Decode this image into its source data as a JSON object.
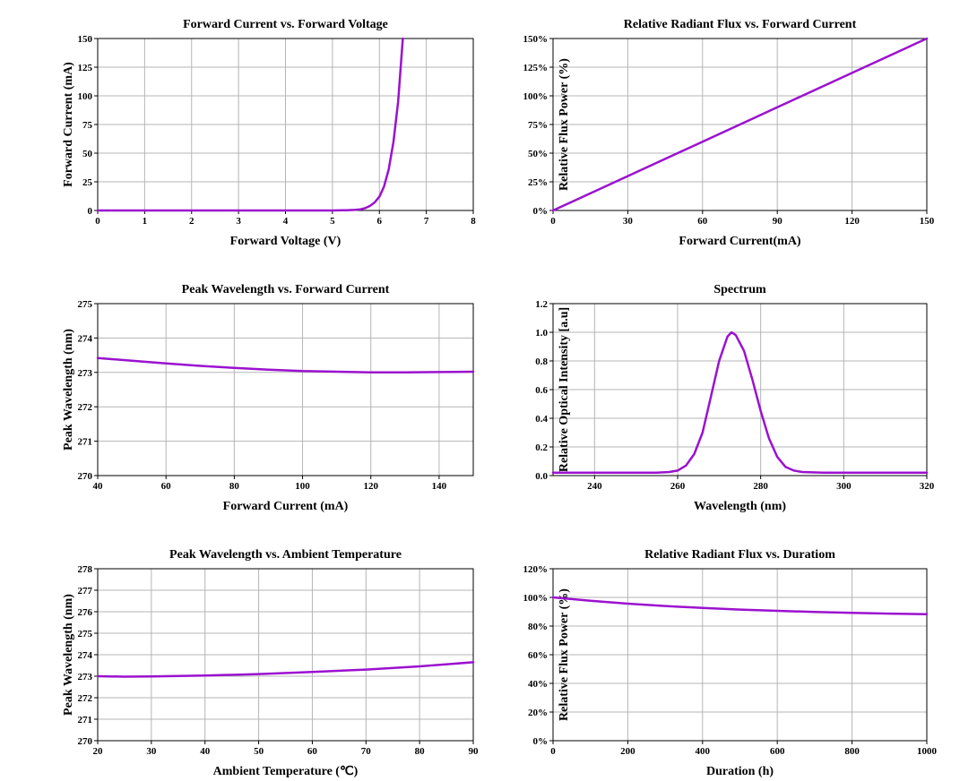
{
  "style": {
    "line_color": "#9b11cf",
    "grid_color": "#b5b5b5",
    "axis_color": "#000000"
  },
  "chart_data": [
    {
      "id": "iv",
      "type": "line",
      "title": "Forward Current vs. Forward Voltage",
      "xlabel": "Forward Voltage (V)",
      "ylabel": "Forward Current (mA)",
      "xlim": [
        0,
        8
      ],
      "ylim": [
        0,
        150
      ],
      "xticks": [
        0,
        1,
        2,
        3,
        4,
        5,
        6,
        7,
        8
      ],
      "yticks": [
        0,
        25,
        50,
        75,
        100,
        125,
        150
      ],
      "xtick_labels": [
        "0",
        "1",
        "2",
        "3",
        "4",
        "5",
        "6",
        "7",
        "8"
      ],
      "ytick_labels": [
        "0",
        "25",
        "50",
        "75",
        "100",
        "125",
        "150"
      ],
      "grid": true,
      "series": [
        {
          "x": [
            0,
            1,
            2,
            3,
            4,
            5,
            5.3,
            5.5,
            5.6,
            5.7,
            5.8,
            5.9,
            6.0,
            6.1,
            6.2,
            6.3,
            6.4,
            6.5
          ],
          "y": [
            0,
            0,
            0,
            0,
            0,
            0,
            0.2,
            0.6,
            1,
            2,
            4,
            7,
            12,
            21,
            36,
            60,
            95,
            150
          ]
        }
      ]
    },
    {
      "id": "flux-current",
      "type": "line",
      "title": "Relative Radiant Flux vs. Forward Current",
      "xlabel": "Forward Current(mA)",
      "ylabel": "Relative Flux Power (%)",
      "xlim": [
        0,
        150
      ],
      "ylim": [
        0,
        150
      ],
      "xticks": [
        0,
        30,
        60,
        90,
        120,
        150
      ],
      "yticks": [
        0,
        25,
        50,
        75,
        100,
        125,
        150
      ],
      "xtick_labels": [
        "0",
        "30",
        "60",
        "90",
        "120",
        "150"
      ],
      "ytick_labels": [
        "0%",
        "25%",
        "50%",
        "75%",
        "100%",
        "125%",
        "150%"
      ],
      "grid": true,
      "series": [
        {
          "x": [
            0,
            30,
            60,
            90,
            120,
            150
          ],
          "y": [
            0,
            30,
            60,
            90,
            120,
            150
          ]
        }
      ]
    },
    {
      "id": "wl-current",
      "type": "line",
      "title": "Peak Wavelength vs. Forward Current",
      "xlabel": "Forward Current (mA)",
      "ylabel": "Peak Wavelength (nm)",
      "xlim": [
        40,
        150
      ],
      "ylim": [
        270,
        275
      ],
      "xticks": [
        40,
        60,
        80,
        100,
        120,
        140
      ],
      "yticks": [
        270,
        271,
        272,
        273,
        274,
        275
      ],
      "xtick_labels": [
        "40",
        "60",
        "80",
        "100",
        "120",
        "140"
      ],
      "ytick_labels": [
        "270",
        "271",
        "272",
        "273",
        "274",
        "275"
      ],
      "grid": true,
      "series": [
        {
          "x": [
            40,
            50,
            60,
            70,
            80,
            90,
            100,
            110,
            120,
            130,
            140,
            150
          ],
          "y": [
            273.42,
            273.34,
            273.26,
            273.19,
            273.13,
            273.08,
            273.04,
            273.02,
            273.0,
            273.0,
            273.01,
            273.02
          ]
        }
      ]
    },
    {
      "id": "spectrum",
      "type": "line",
      "title": "Spectrum",
      "xlabel": "Wavelength (nm)",
      "ylabel": "Relative Optical Intensity [a.u]",
      "xlim": [
        230,
        320
      ],
      "ylim": [
        0,
        1.2
      ],
      "xticks": [
        240,
        260,
        280,
        300,
        320
      ],
      "yticks": [
        0,
        0.2,
        0.4,
        0.6,
        0.8,
        1.0,
        1.2
      ],
      "xtick_labels": [
        "240",
        "260",
        "280",
        "300",
        "320"
      ],
      "ytick_labels": [
        "0.0",
        "0.2",
        "0.4",
        "0.6",
        "0.8",
        "1.0",
        "1.2"
      ],
      "grid": true,
      "series": [
        {
          "x": [
            230,
            240,
            250,
            255,
            258,
            260,
            262,
            264,
            266,
            268,
            270,
            272,
            273,
            274,
            276,
            278,
            280,
            282,
            284,
            286,
            288,
            290,
            295,
            300,
            310,
            320
          ],
          "y": [
            0.02,
            0.02,
            0.02,
            0.02,
            0.025,
            0.035,
            0.07,
            0.15,
            0.3,
            0.55,
            0.8,
            0.97,
            1.0,
            0.98,
            0.87,
            0.67,
            0.45,
            0.26,
            0.13,
            0.06,
            0.035,
            0.025,
            0.02,
            0.02,
            0.02,
            0.02
          ]
        }
      ]
    },
    {
      "id": "wl-temp",
      "type": "line",
      "title": "Peak Wavelength vs. Ambient Temperature",
      "xlabel": "Ambient Temperature (℃)",
      "ylabel": "Peak Wavelength (nm)",
      "xlim": [
        20,
        90
      ],
      "ylim": [
        270,
        278
      ],
      "xticks": [
        20,
        30,
        40,
        50,
        60,
        70,
        80,
        90
      ],
      "yticks": [
        270,
        271,
        272,
        273,
        274,
        275,
        276,
        277,
        278
      ],
      "xtick_labels": [
        "20",
        "30",
        "40",
        "50",
        "60",
        "70",
        "80",
        "90"
      ],
      "ytick_labels": [
        "270",
        "271",
        "272",
        "273",
        "274",
        "275",
        "276",
        "277",
        "278"
      ],
      "grid": true,
      "series": [
        {
          "x": [
            20,
            25,
            30,
            40,
            50,
            60,
            70,
            80,
            90
          ],
          "y": [
            273.0,
            272.98,
            272.99,
            273.03,
            273.1,
            273.2,
            273.31,
            273.46,
            273.65
          ]
        }
      ]
    },
    {
      "id": "flux-duration",
      "type": "line",
      "title": "Relative Radiant Flux vs. Duratiom",
      "xlabel": "Duration (h)",
      "ylabel": "Relative Flux Power (%)",
      "xlim": [
        0,
        1000
      ],
      "ylim": [
        0,
        120
      ],
      "xticks": [
        0,
        200,
        400,
        600,
        800,
        1000
      ],
      "yticks": [
        0,
        20,
        40,
        60,
        80,
        100,
        120
      ],
      "xtick_labels": [
        "0",
        "200",
        "400",
        "600",
        "800",
        "1000"
      ],
      "ytick_labels": [
        "0%",
        "20%",
        "40%",
        "60%",
        "80%",
        "100%",
        "120%"
      ],
      "grid": true,
      "series": [
        {
          "x": [
            0,
            100,
            200,
            300,
            400,
            500,
            600,
            700,
            800,
            900,
            1000
          ],
          "y": [
            100,
            97.6,
            95.6,
            94.0,
            92.6,
            91.5,
            90.6,
            89.8,
            89.2,
            88.7,
            88.3
          ]
        }
      ]
    }
  ]
}
